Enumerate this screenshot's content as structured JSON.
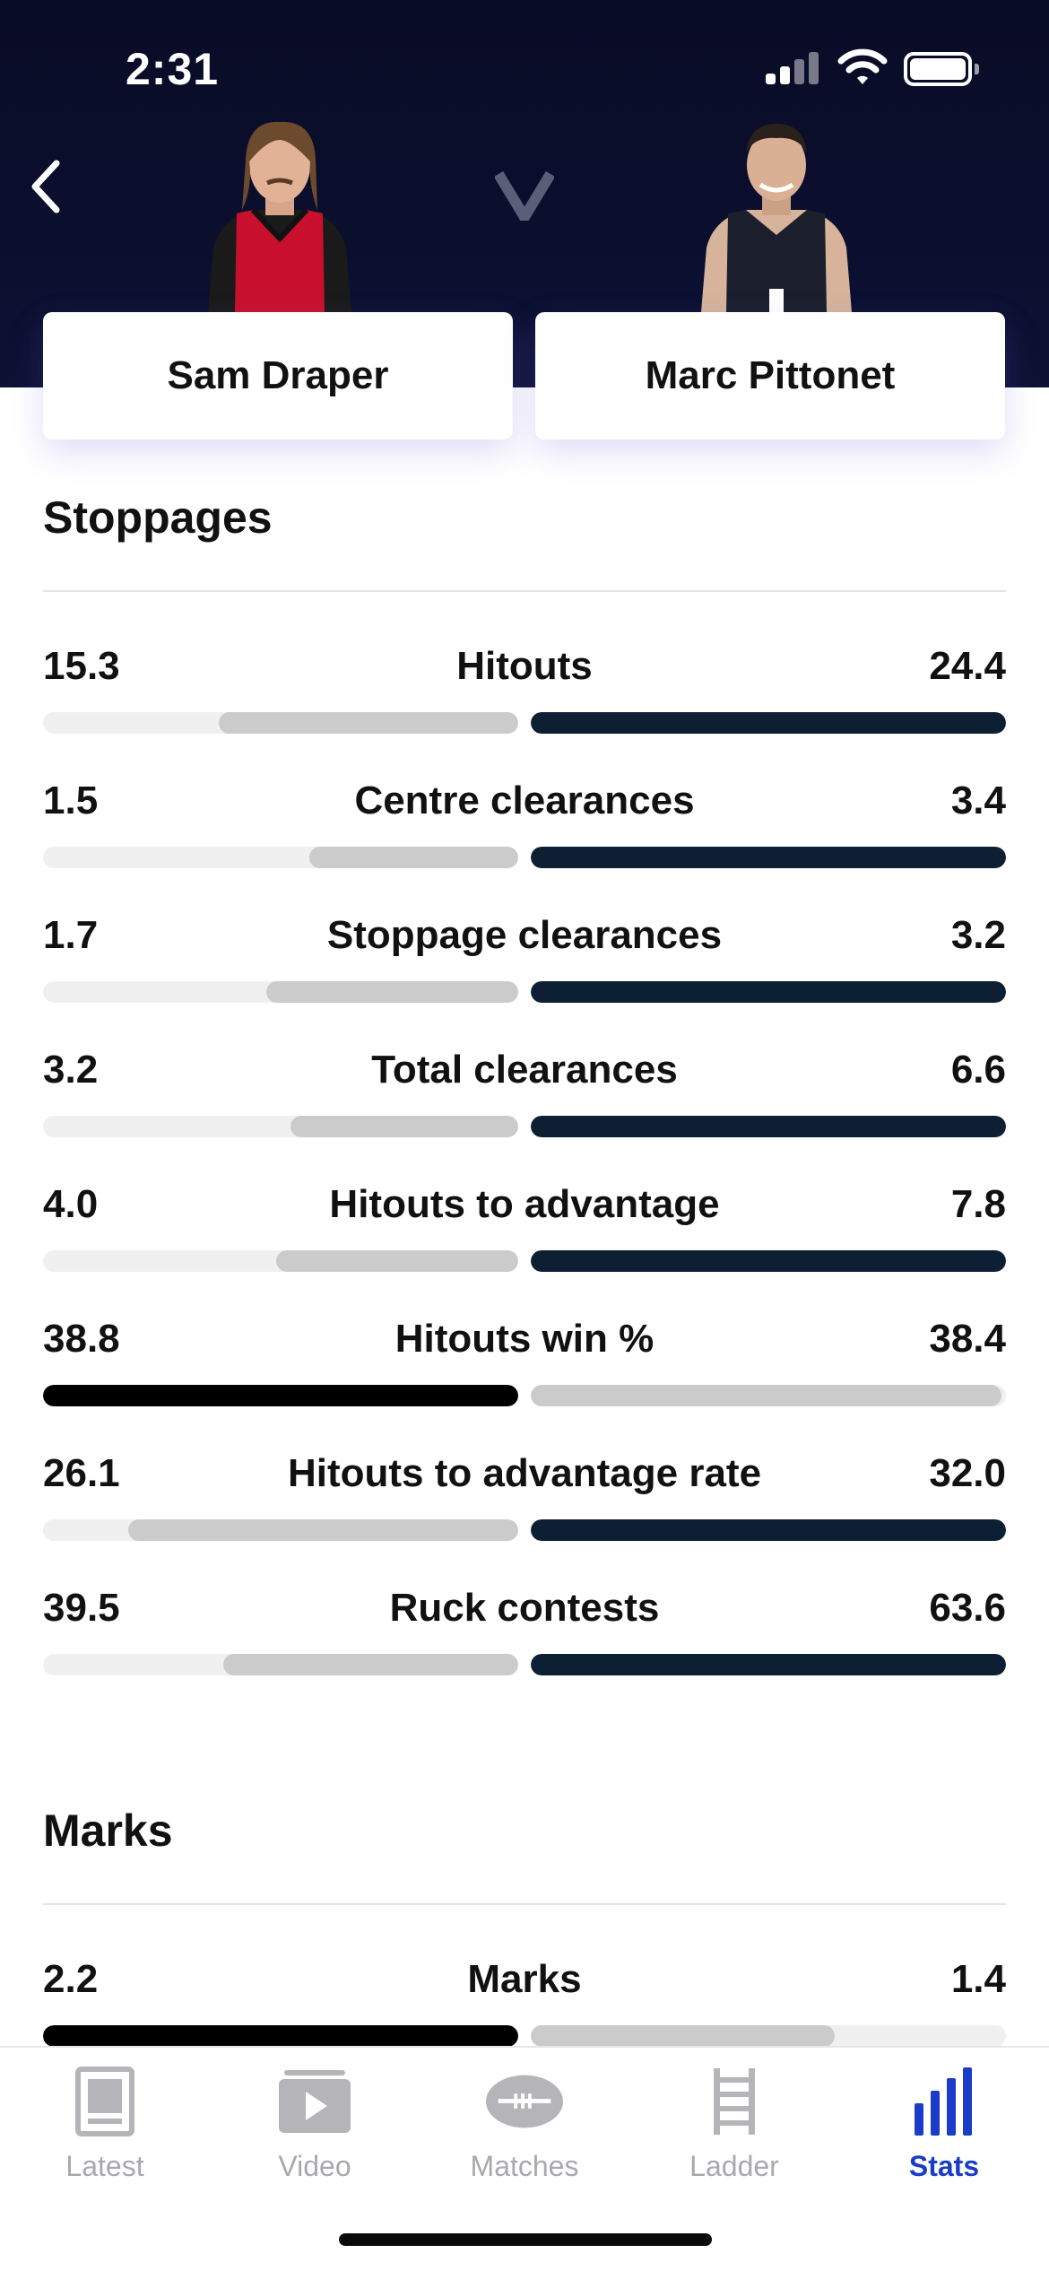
{
  "status_bar": {
    "time": "2:31"
  },
  "players": {
    "left": {
      "name": "Sam Draper"
    },
    "right": {
      "name": "Marc Pittonet"
    }
  },
  "vs_label": "V",
  "sections": [
    {
      "title": "Stoppages",
      "stats": [
        {
          "label": "Hitouts",
          "left": "15.3",
          "right": "24.4",
          "left_pct": 0.63,
          "right_pct": 1.0,
          "leader": "right"
        },
        {
          "label": "Centre clearances",
          "left": "1.5",
          "right": "3.4",
          "left_pct": 0.44,
          "right_pct": 1.0,
          "leader": "right"
        },
        {
          "label": "Stoppage clearances",
          "left": "1.7",
          "right": "3.2",
          "left_pct": 0.53,
          "right_pct": 1.0,
          "leader": "right"
        },
        {
          "label": "Total clearances",
          "left": "3.2",
          "right": "6.6",
          "left_pct": 0.48,
          "right_pct": 1.0,
          "leader": "right"
        },
        {
          "label": "Hitouts to advantage",
          "left": "4.0",
          "right": "7.8",
          "left_pct": 0.51,
          "right_pct": 1.0,
          "leader": "right"
        },
        {
          "label": "Hitouts win %",
          "left": "38.8",
          "right": "38.4",
          "left_pct": 1.0,
          "right_pct": 0.99,
          "leader": "left"
        },
        {
          "label": "Hitouts to advantage rate",
          "left": "26.1",
          "right": "32.0",
          "left_pct": 0.82,
          "right_pct": 1.0,
          "leader": "right"
        },
        {
          "label": "Ruck contests",
          "left": "39.5",
          "right": "63.6",
          "left_pct": 0.62,
          "right_pct": 1.0,
          "leader": "right"
        }
      ]
    },
    {
      "title": "Marks",
      "stats": [
        {
          "label": "Marks",
          "left": "2.2",
          "right": "1.4",
          "left_pct": 1.0,
          "right_pct": 0.64,
          "leader": "left"
        }
      ]
    }
  ],
  "colors": {
    "right_leader_bar": "#0d1f33",
    "left_leader_bar": "#000000",
    "trailing_bar": "#cbcbcb",
    "track": "#f0f0f0",
    "active_tab": "#1a3cc8",
    "inactive_tab": "#a9a9ad"
  },
  "tabs": [
    {
      "label": "Latest",
      "icon": "news-icon",
      "active": false
    },
    {
      "label": "Video",
      "icon": "video-play-icon",
      "active": false
    },
    {
      "label": "Matches",
      "icon": "football-icon",
      "active": false
    },
    {
      "label": "Ladder",
      "icon": "ladder-icon",
      "active": false
    },
    {
      "label": "Stats",
      "icon": "bar-chart-icon",
      "active": true
    }
  ]
}
